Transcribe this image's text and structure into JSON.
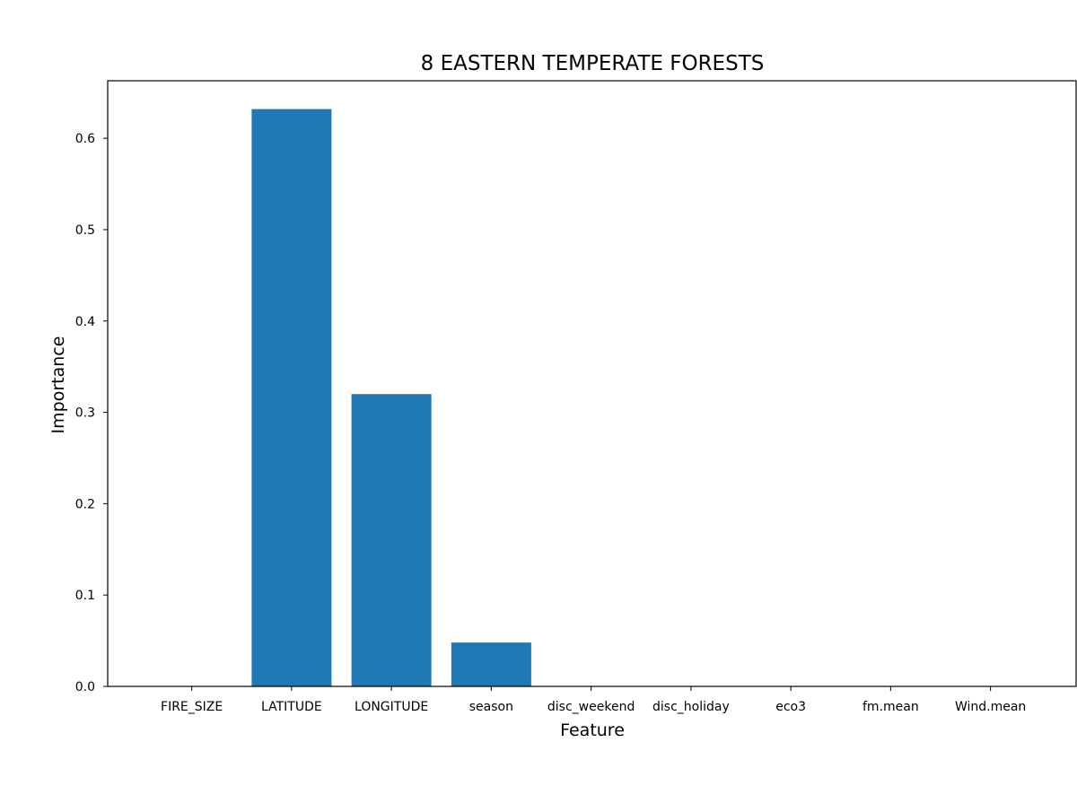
{
  "chart_data": {
    "type": "bar",
    "title": "8  EASTERN TEMPERATE FORESTS",
    "xlabel": "Feature",
    "ylabel": "Importance",
    "categories": [
      "FIRE_SIZE",
      "LATITUDE",
      "LONGITUDE",
      "season",
      "disc_weekend",
      "disc_holiday",
      "eco3",
      "fm.mean",
      "Wind.mean"
    ],
    "values": [
      0.0,
      0.632,
      0.32,
      0.048,
      0.0,
      0.0,
      0.0,
      0.0,
      0.0
    ],
    "ylim": [
      0,
      0.663
    ],
    "yticks": [
      0.0,
      0.1,
      0.2,
      0.3,
      0.4,
      0.5,
      0.6
    ],
    "ytick_labels": [
      "0.0",
      "0.1",
      "0.2",
      "0.3",
      "0.4",
      "0.5",
      "0.6"
    ],
    "bar_color": "#1f77b4",
    "grid": false,
    "legend": "none"
  }
}
